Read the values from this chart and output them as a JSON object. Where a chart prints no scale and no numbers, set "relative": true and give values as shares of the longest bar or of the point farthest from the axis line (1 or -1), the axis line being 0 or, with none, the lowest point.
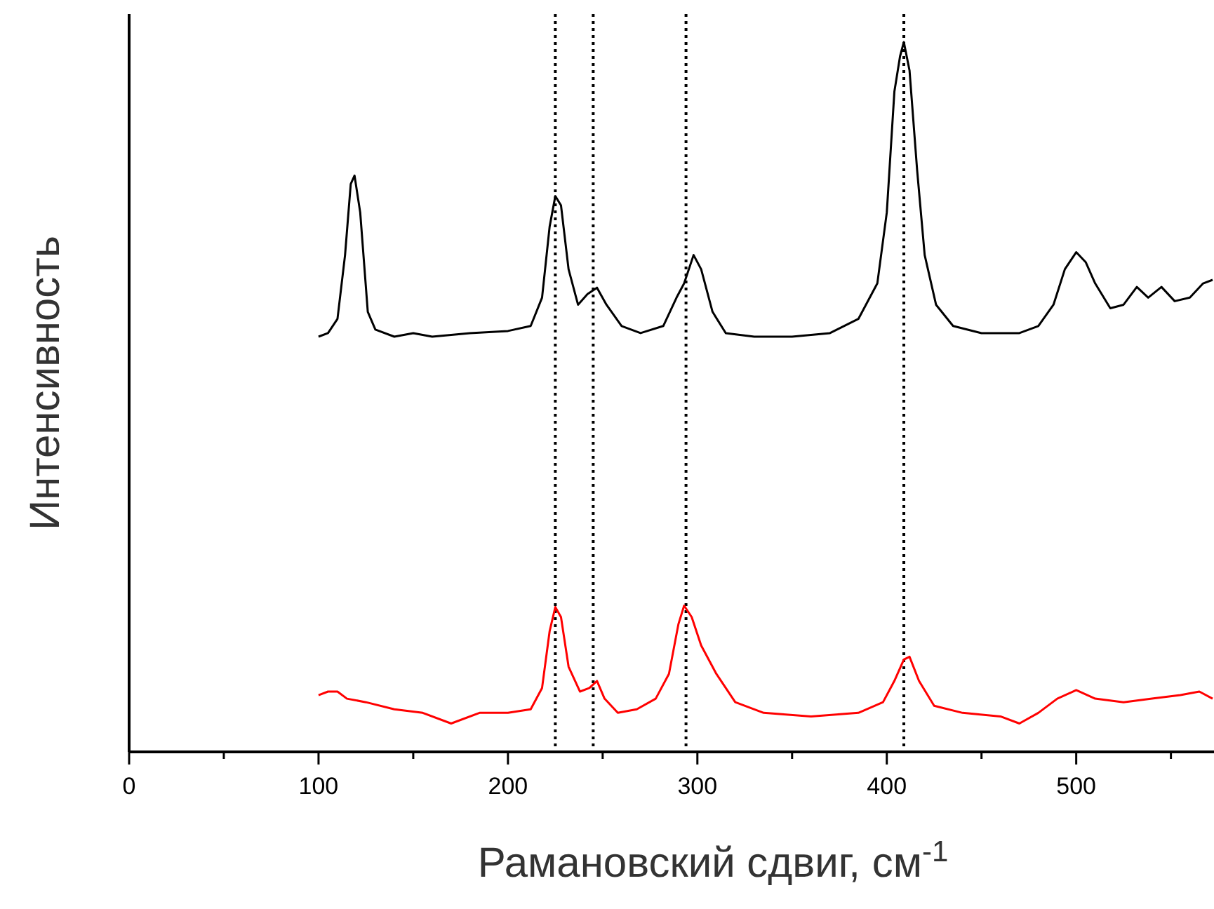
{
  "chart_data": {
    "type": "line",
    "relative": true,
    "xlabel": "Рамановский сдвиг, см$^{-1}$",
    "ylabel": "Интенсивность",
    "xlim": [
      0,
      572
    ],
    "xticks": [
      0,
      {
        "value": 50,
        "label": null
      },
      100,
      {
        "value": 150,
        "label": null
      },
      200,
      {
        "value": 250,
        "label": null
      },
      300,
      {
        "value": 350,
        "label": null
      },
      400,
      {
        "value": 450,
        "label": null
      },
      500,
      {
        "value": 550,
        "label": null
      }
    ],
    "series": [
      {
        "color": "#000000",
        "x": [
          100,
          105,
          110,
          114,
          117,
          119,
          122,
          126,
          130,
          140,
          150,
          160,
          180,
          200,
          212,
          218,
          222,
          225,
          228,
          232,
          237,
          242,
          247,
          252,
          260,
          270,
          282,
          289,
          293,
          298,
          302,
          308,
          315,
          330,
          350,
          370,
          385,
          395,
          400,
          404,
          407,
          409,
          412,
          416,
          420,
          426,
          435,
          450,
          470,
          480,
          488,
          494,
          500,
          505,
          510,
          518,
          525,
          532,
          538,
          545,
          552,
          560,
          567,
          572
        ],
        "values": [
          0.585,
          0.59,
          0.61,
          0.7,
          0.8,
          0.812,
          0.76,
          0.62,
          0.595,
          0.585,
          0.59,
          0.585,
          0.59,
          0.593,
          0.6,
          0.64,
          0.74,
          0.783,
          0.77,
          0.68,
          0.63,
          0.645,
          0.654,
          0.63,
          0.6,
          0.59,
          0.6,
          0.64,
          0.66,
          0.7,
          0.68,
          0.62,
          0.59,
          0.585,
          0.585,
          0.59,
          0.61,
          0.66,
          0.76,
          0.93,
          0.98,
          1.0,
          0.96,
          0.82,
          0.7,
          0.63,
          0.6,
          0.59,
          0.59,
          0.6,
          0.63,
          0.68,
          0.704,
          0.69,
          0.66,
          0.625,
          0.63,
          0.655,
          0.64,
          0.655,
          0.635,
          0.64,
          0.66,
          0.665
        ]
      },
      {
        "color": "#ff0000",
        "x": [
          100,
          105,
          110,
          115,
          125,
          140,
          155,
          170,
          185,
          200,
          212,
          218,
          222,
          225,
          228,
          232,
          238,
          243,
          247,
          251,
          258,
          268,
          278,
          285,
          290,
          293,
          297,
          302,
          310,
          320,
          335,
          360,
          385,
          398,
          404,
          409,
          412,
          417,
          425,
          440,
          460,
          470,
          480,
          490,
          500,
          510,
          525,
          540,
          555,
          565,
          572
        ],
        "values": [
          0.08,
          0.085,
          0.085,
          0.075,
          0.07,
          0.06,
          0.055,
          0.04,
          0.055,
          0.055,
          0.06,
          0.09,
          0.17,
          0.204,
          0.19,
          0.12,
          0.085,
          0.09,
          0.1,
          0.075,
          0.055,
          0.06,
          0.075,
          0.11,
          0.18,
          0.206,
          0.19,
          0.15,
          0.11,
          0.07,
          0.055,
          0.05,
          0.055,
          0.07,
          0.1,
          0.13,
          0.134,
          0.1,
          0.065,
          0.055,
          0.05,
          0.04,
          0.055,
          0.075,
          0.087,
          0.075,
          0.07,
          0.075,
          0.08,
          0.085,
          0.075
        ]
      }
    ],
    "ref_lines": [
      {
        "axis": "x",
        "value": 225,
        "color": "#000000",
        "line_style": "dotted"
      },
      {
        "axis": "x",
        "value": 245,
        "color": "#000000",
        "line_style": "dotted"
      },
      {
        "axis": "x",
        "value": 294,
        "color": "#000000",
        "line_style": "dotted"
      },
      {
        "axis": "x",
        "value": 409,
        "color": "#000000",
        "line_style": "dotted"
      }
    ]
  }
}
